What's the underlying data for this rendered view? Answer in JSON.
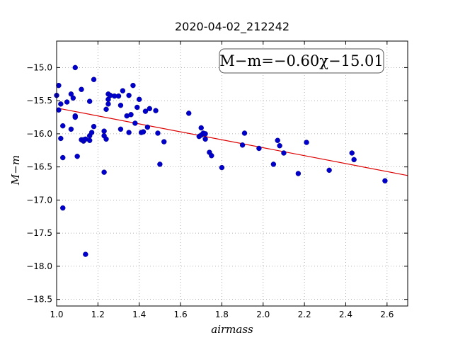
{
  "chart_data": {
    "type": "scatter",
    "title": "2020-04-02_212242",
    "xlabel": "airmass",
    "ylabel": "M−m",
    "xlim": [
      1.0,
      2.7
    ],
    "ylim": [
      -18.6,
      -14.6
    ],
    "x_ticks": [
      1.0,
      1.2,
      1.4,
      1.6,
      1.8,
      2.0,
      2.2,
      2.4,
      2.6
    ],
    "x_tick_labels": [
      "1.0",
      "1.2",
      "1.4",
      "1.6",
      "1.8",
      "2.0",
      "2.2",
      "2.4",
      "2.6"
    ],
    "y_ticks": [
      -15.0,
      -15.5,
      -16.0,
      -16.5,
      -17.0,
      -17.5,
      -18.0,
      -18.5
    ],
    "y_tick_labels": [
      "−15.0",
      "−15.5",
      "−16.0",
      "−16.5",
      "−17.0",
      "−17.5",
      "−18.0",
      "−18.5"
    ],
    "grid": true,
    "annotation": "M−m=−0.60χ−15.01",
    "fit": {
      "slope": -0.6,
      "intercept": -15.01,
      "color": "#dd0000"
    },
    "point_color": "#0000cc",
    "points": [
      [
        1.0,
        -15.42
      ],
      [
        1.01,
        -15.27
      ],
      [
        1.01,
        -15.64
      ],
      [
        1.02,
        -15.55
      ],
      [
        1.02,
        -16.07
      ],
      [
        1.03,
        -15.88
      ],
      [
        1.03,
        -16.36
      ],
      [
        1.03,
        -17.12
      ],
      [
        1.05,
        -15.52
      ],
      [
        1.07,
        -15.4
      ],
      [
        1.07,
        -15.93
      ],
      [
        1.08,
        -15.46
      ],
      [
        1.09,
        -15.0
      ],
      [
        1.09,
        -15.73
      ],
      [
        1.09,
        -15.75
      ],
      [
        1.1,
        -16.34
      ],
      [
        1.12,
        -15.33
      ],
      [
        1.12,
        -16.09
      ],
      [
        1.13,
        -16.11
      ],
      [
        1.13,
        -16.09
      ],
      [
        1.14,
        -16.08
      ],
      [
        1.14,
        -17.82
      ],
      [
        1.16,
        -15.51
      ],
      [
        1.16,
        -16.1
      ],
      [
        1.16,
        -16.03
      ],
      [
        1.17,
        -15.98
      ],
      [
        1.18,
        -15.18
      ],
      [
        1.18,
        -15.89
      ],
      [
        1.23,
        -16.58
      ],
      [
        1.23,
        -15.96
      ],
      [
        1.23,
        -16.03
      ],
      [
        1.24,
        -16.08
      ],
      [
        1.24,
        -15.63
      ],
      [
        1.25,
        -15.4
      ],
      [
        1.25,
        -15.55
      ],
      [
        1.25,
        -15.48
      ],
      [
        1.26,
        -15.42
      ],
      [
        1.28,
        -15.43
      ],
      [
        1.3,
        -15.43
      ],
      [
        1.31,
        -15.57
      ],
      [
        1.31,
        -15.93
      ],
      [
        1.32,
        -15.35
      ],
      [
        1.34,
        -15.73
      ],
      [
        1.35,
        -15.98
      ],
      [
        1.35,
        -15.42
      ],
      [
        1.36,
        -15.71
      ],
      [
        1.37,
        -15.27
      ],
      [
        1.38,
        -15.84
      ],
      [
        1.39,
        -15.6
      ],
      [
        1.4,
        -15.48
      ],
      [
        1.41,
        -15.98
      ],
      [
        1.42,
        -15.97
      ],
      [
        1.43,
        -15.66
      ],
      [
        1.44,
        -15.9
      ],
      [
        1.45,
        -15.62
      ],
      [
        1.48,
        -15.65
      ],
      [
        1.49,
        -15.99
      ],
      [
        1.5,
        -16.46
      ],
      [
        1.52,
        -16.12
      ],
      [
        1.64,
        -15.69
      ],
      [
        1.69,
        -16.04
      ],
      [
        1.7,
        -16.02
      ],
      [
        1.7,
        -15.91
      ],
      [
        1.71,
        -15.99
      ],
      [
        1.72,
        -16.0
      ],
      [
        1.72,
        -16.08
      ],
      [
        1.74,
        -16.28
      ],
      [
        1.75,
        -16.33
      ],
      [
        1.8,
        -16.51
      ],
      [
        1.9,
        -16.17
      ],
      [
        1.91,
        -15.99
      ],
      [
        1.98,
        -16.22
      ],
      [
        2.05,
        -16.46
      ],
      [
        2.07,
        -16.1
      ],
      [
        2.08,
        -16.18
      ],
      [
        2.1,
        -16.29
      ],
      [
        2.17,
        -16.6
      ],
      [
        2.21,
        -16.13
      ],
      [
        2.32,
        -16.55
      ],
      [
        2.43,
        -16.29
      ],
      [
        2.44,
        -16.39
      ],
      [
        2.59,
        -16.71
      ]
    ]
  }
}
